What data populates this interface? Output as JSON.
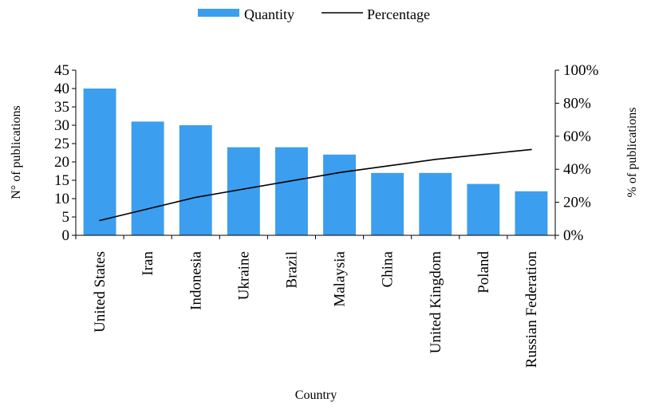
{
  "chart_data": {
    "type": "bar",
    "title": "",
    "xlabel": "Country",
    "ylabel": "N° of publications",
    "ylabel_right": "% of publications",
    "categories": [
      "United States",
      "Iran",
      "Indonesia",
      "Ukraine",
      "Brazil",
      "Malaysia",
      "China",
      "United Kingdom",
      "Poland",
      "Russian Federation"
    ],
    "series": [
      {
        "name": "Quantity",
        "type": "bar",
        "axis": "left",
        "color": "#3c9eef",
        "values": [
          40,
          31,
          30,
          24,
          24,
          22,
          17,
          17,
          14,
          12
        ]
      },
      {
        "name": "Percentage",
        "type": "line",
        "axis": "right",
        "color": "#000000",
        "values": [
          9,
          16,
          23,
          28,
          33,
          38,
          42,
          46,
          49,
          52
        ]
      }
    ],
    "ylim": [
      0,
      45
    ],
    "yticks": [
      "0",
      "5",
      "10",
      "15",
      "20",
      "25",
      "30",
      "35",
      "40",
      "45"
    ],
    "ylim_right": [
      0,
      100
    ],
    "yticks_right": [
      "0%",
      "20%",
      "40%",
      "60%",
      "80%",
      "100%"
    ],
    "legend_position": "top-center",
    "grid": false
  }
}
